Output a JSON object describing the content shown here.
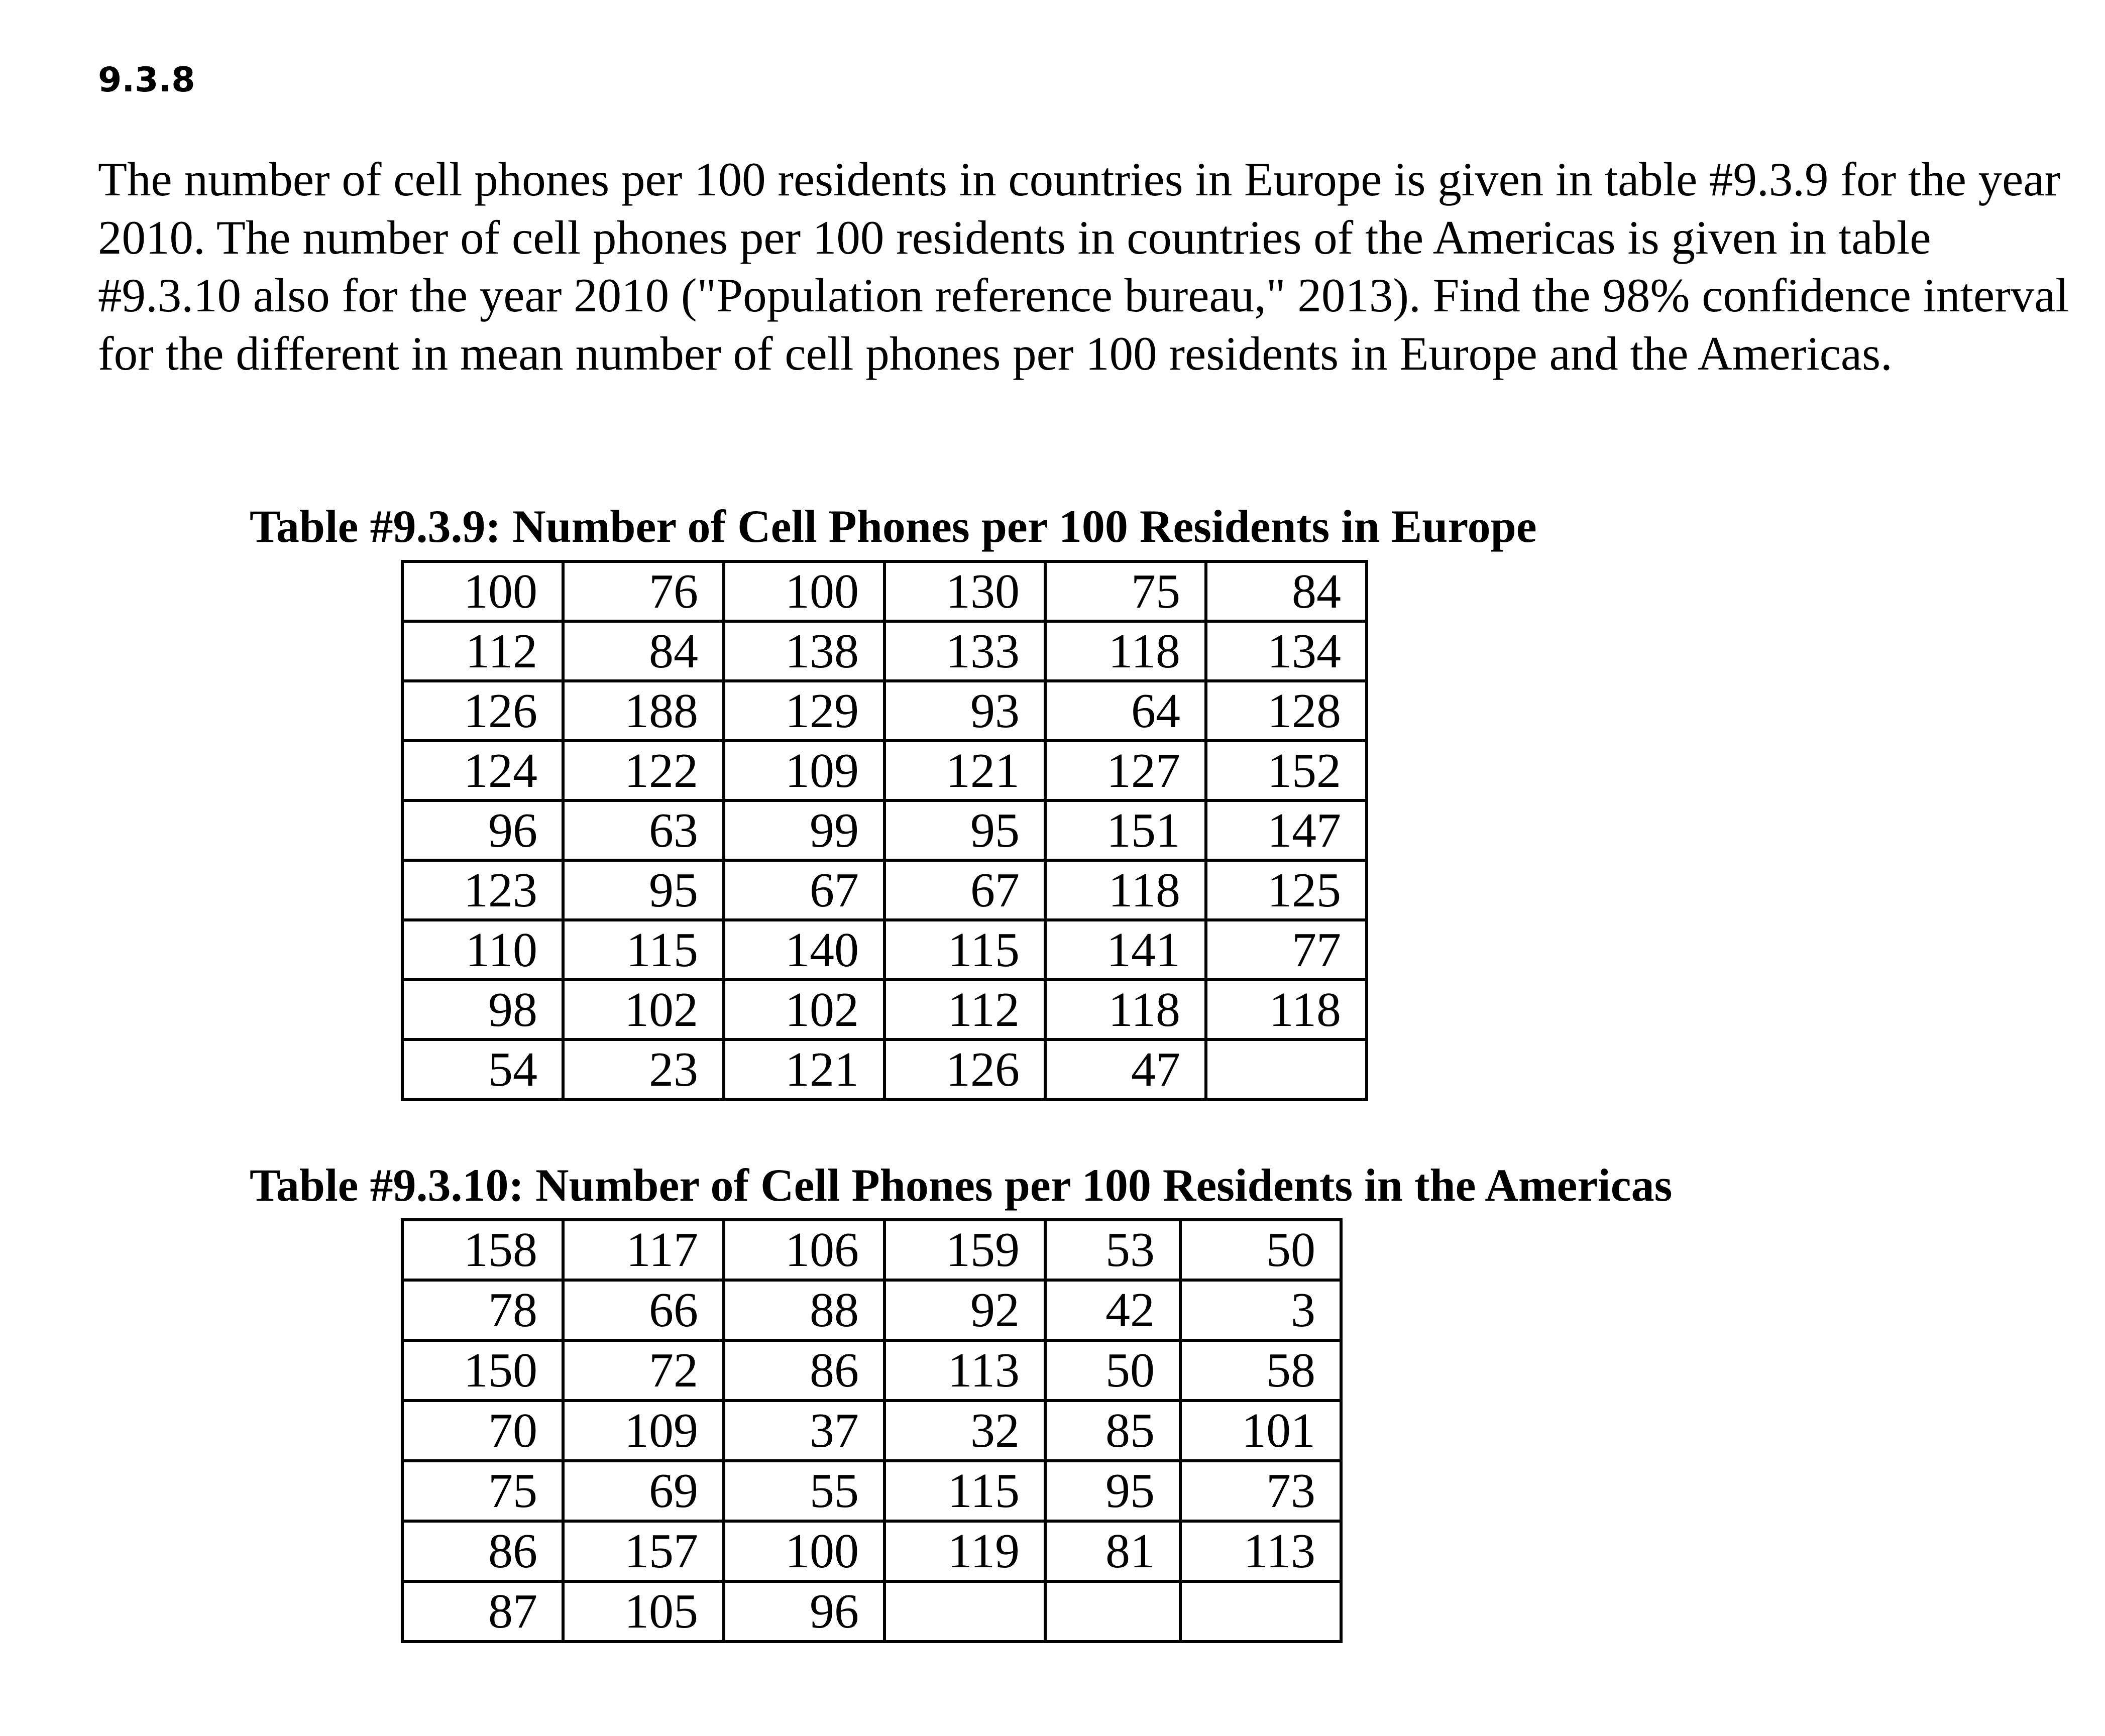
{
  "heading": "9.3.8",
  "problem_text": "The number of cell phones per 100 residents in countries in Europe is given in table #9.3.9 for the year 2010.  The number of cell phones per 100 residents in countries of the Americas is given in table #9.3.10 also for the year 2010 (\"Population reference bureau,\" 2013).  Find the 98% confidence interval for the different in mean number of cell phones per 100 residents in Europe and the Americas.",
  "table1": {
    "title": "Table #9.3.9: Number of Cell Phones per 100 Residents in Europe",
    "rows": [
      [
        "100",
        "76",
        "100",
        "130",
        "75",
        "84"
      ],
      [
        "112",
        "84",
        "138",
        "133",
        "118",
        "134"
      ],
      [
        "126",
        "188",
        "129",
        "93",
        "64",
        "128"
      ],
      [
        "124",
        "122",
        "109",
        "121",
        "127",
        "152"
      ],
      [
        "96",
        "63",
        "99",
        "95",
        "151",
        "147"
      ],
      [
        "123",
        "95",
        "67",
        "67",
        "118",
        "125"
      ],
      [
        "110",
        "115",
        "140",
        "115",
        "141",
        "77"
      ],
      [
        "98",
        "102",
        "102",
        "112",
        "118",
        "118"
      ],
      [
        "54",
        "23",
        "121",
        "126",
        "47",
        ""
      ]
    ]
  },
  "table2": {
    "title": "Table #9.3.10: Number of Cell Phones per 100 Residents in the Americas",
    "rows": [
      [
        "158",
        "117",
        "106",
        "159",
        "53",
        "50"
      ],
      [
        "78",
        "66",
        "88",
        "92",
        "42",
        "3"
      ],
      [
        "150",
        "72",
        "86",
        "113",
        "50",
        "58"
      ],
      [
        "70",
        "109",
        "37",
        "32",
        "85",
        "101"
      ],
      [
        "75",
        "69",
        "55",
        "115",
        "95",
        "73"
      ],
      [
        "86",
        "157",
        "100",
        "119",
        "81",
        "113"
      ],
      [
        "87",
        "105",
        "96",
        "",
        "",
        ""
      ]
    ]
  }
}
